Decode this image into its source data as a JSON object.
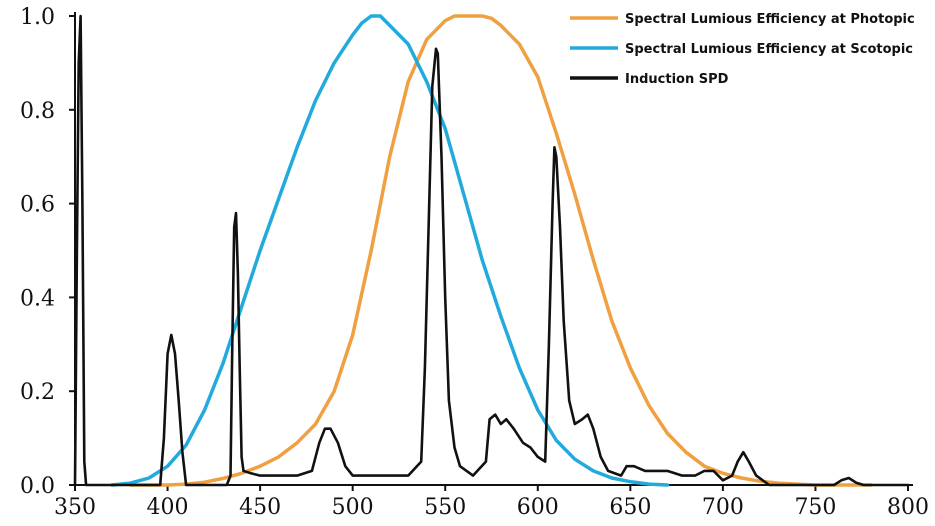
{
  "chart_data": {
    "type": "line",
    "title": "",
    "xlabel": "",
    "ylabel": "",
    "xlim": [
      350,
      800
    ],
    "ylim": [
      0,
      1.0
    ],
    "x_ticks": [
      350,
      400,
      450,
      500,
      550,
      600,
      650,
      700,
      750,
      800
    ],
    "y_ticks": [
      0.0,
      0.2,
      0.4,
      0.6,
      0.8,
      1.0
    ],
    "x_tick_labels": [
      "350",
      "400",
      "450",
      "500",
      "550",
      "600",
      "650",
      "700",
      "750",
      "800"
    ],
    "y_tick_labels": [
      "0.0",
      "0.2",
      "0.4",
      "0.6",
      "0.8",
      "1.0"
    ],
    "grid": false,
    "legend_position": "top-right",
    "series": [
      {
        "name": "Spectral Lumious Efficiency at Photopic",
        "color": "#f0a040",
        "points": [
          [
            380,
            0.0
          ],
          [
            400,
            0.0
          ],
          [
            410,
            0.002
          ],
          [
            420,
            0.006
          ],
          [
            430,
            0.014
          ],
          [
            440,
            0.025
          ],
          [
            450,
            0.04
          ],
          [
            460,
            0.06
          ],
          [
            470,
            0.09
          ],
          [
            480,
            0.13
          ],
          [
            490,
            0.2
          ],
          [
            500,
            0.32
          ],
          [
            510,
            0.5
          ],
          [
            520,
            0.7
          ],
          [
            530,
            0.86
          ],
          [
            540,
            0.95
          ],
          [
            550,
            0.99
          ],
          [
            555,
            1.0
          ],
          [
            560,
            1.0
          ],
          [
            570,
            1.0
          ],
          [
            575,
            0.995
          ],
          [
            580,
            0.98
          ],
          [
            590,
            0.94
          ],
          [
            600,
            0.87
          ],
          [
            610,
            0.75
          ],
          [
            620,
            0.62
          ],
          [
            630,
            0.48
          ],
          [
            640,
            0.35
          ],
          [
            650,
            0.25
          ],
          [
            660,
            0.17
          ],
          [
            670,
            0.11
          ],
          [
            680,
            0.07
          ],
          [
            690,
            0.04
          ],
          [
            700,
            0.025
          ],
          [
            710,
            0.015
          ],
          [
            720,
            0.008
          ],
          [
            730,
            0.004
          ],
          [
            740,
            0.002
          ],
          [
            750,
            0.0
          ],
          [
            780,
            0.0
          ]
        ]
      },
      {
        "name": "Spectral Lumious Efficiency at Scotopic",
        "color": "#22aadd",
        "points": [
          [
            370,
            0.0
          ],
          [
            380,
            0.004
          ],
          [
            390,
            0.015
          ],
          [
            400,
            0.04
          ],
          [
            410,
            0.085
          ],
          [
            420,
            0.16
          ],
          [
            430,
            0.26
          ],
          [
            440,
            0.38
          ],
          [
            450,
            0.5
          ],
          [
            460,
            0.61
          ],
          [
            470,
            0.72
          ],
          [
            480,
            0.82
          ],
          [
            490,
            0.9
          ],
          [
            500,
            0.96
          ],
          [
            505,
            0.985
          ],
          [
            510,
            1.0
          ],
          [
            515,
            1.0
          ],
          [
            520,
            0.98
          ],
          [
            530,
            0.94
          ],
          [
            540,
            0.86
          ],
          [
            550,
            0.76
          ],
          [
            560,
            0.62
          ],
          [
            570,
            0.48
          ],
          [
            580,
            0.36
          ],
          [
            590,
            0.25
          ],
          [
            600,
            0.16
          ],
          [
            610,
            0.095
          ],
          [
            620,
            0.055
          ],
          [
            630,
            0.03
          ],
          [
            640,
            0.015
          ],
          [
            650,
            0.007
          ],
          [
            660,
            0.002
          ],
          [
            670,
            0.0
          ]
        ]
      },
      {
        "name": "Induction SPD",
        "color": "#111111",
        "points": [
          [
            350,
            0.0
          ],
          [
            351,
            0.5
          ],
          [
            352,
            0.9
          ],
          [
            353,
            1.0
          ],
          [
            354,
            0.6
          ],
          [
            355,
            0.05
          ],
          [
            356,
            0.0
          ],
          [
            396,
            0.0
          ],
          [
            398,
            0.1
          ],
          [
            400,
            0.28
          ],
          [
            402,
            0.32
          ],
          [
            404,
            0.28
          ],
          [
            406,
            0.18
          ],
          [
            408,
            0.07
          ],
          [
            410,
            0.0
          ],
          [
            432,
            0.0
          ],
          [
            434,
            0.02
          ],
          [
            435,
            0.3
          ],
          [
            436,
            0.55
          ],
          [
            437,
            0.58
          ],
          [
            438,
            0.45
          ],
          [
            439,
            0.25
          ],
          [
            440,
            0.06
          ],
          [
            441,
            0.03
          ],
          [
            445,
            0.025
          ],
          [
            450,
            0.02
          ],
          [
            470,
            0.02
          ],
          [
            478,
            0.03
          ],
          [
            482,
            0.09
          ],
          [
            485,
            0.12
          ],
          [
            488,
            0.12
          ],
          [
            492,
            0.09
          ],
          [
            496,
            0.04
          ],
          [
            500,
            0.02
          ],
          [
            530,
            0.02
          ],
          [
            537,
            0.05
          ],
          [
            539,
            0.25
          ],
          [
            541,
            0.55
          ],
          [
            543,
            0.85
          ],
          [
            545,
            0.93
          ],
          [
            546,
            0.92
          ],
          [
            548,
            0.7
          ],
          [
            550,
            0.4
          ],
          [
            552,
            0.18
          ],
          [
            555,
            0.08
          ],
          [
            558,
            0.04
          ],
          [
            565,
            0.02
          ],
          [
            572,
            0.05
          ],
          [
            574,
            0.14
          ],
          [
            577,
            0.15
          ],
          [
            580,
            0.13
          ],
          [
            583,
            0.14
          ],
          [
            587,
            0.12
          ],
          [
            592,
            0.09
          ],
          [
            596,
            0.08
          ],
          [
            600,
            0.06
          ],
          [
            604,
            0.05
          ],
          [
            606,
            0.3
          ],
          [
            608,
            0.6
          ],
          [
            609,
            0.72
          ],
          [
            610,
            0.7
          ],
          [
            612,
            0.55
          ],
          [
            614,
            0.35
          ],
          [
            617,
            0.18
          ],
          [
            620,
            0.13
          ],
          [
            624,
            0.14
          ],
          [
            627,
            0.15
          ],
          [
            630,
            0.12
          ],
          [
            634,
            0.06
          ],
          [
            638,
            0.03
          ],
          [
            645,
            0.02
          ],
          [
            648,
            0.04
          ],
          [
            652,
            0.04
          ],
          [
            658,
            0.03
          ],
          [
            670,
            0.03
          ],
          [
            678,
            0.02
          ],
          [
            685,
            0.02
          ],
          [
            690,
            0.03
          ],
          [
            695,
            0.03
          ],
          [
            700,
            0.01
          ],
          [
            705,
            0.02
          ],
          [
            708,
            0.05
          ],
          [
            711,
            0.07
          ],
          [
            714,
            0.05
          ],
          [
            718,
            0.02
          ],
          [
            725,
            0.0
          ],
          [
            760,
            0.0
          ],
          [
            764,
            0.01
          ],
          [
            768,
            0.015
          ],
          [
            772,
            0.005
          ],
          [
            776,
            0.0
          ],
          [
            800,
            0.0
          ]
        ]
      }
    ]
  }
}
